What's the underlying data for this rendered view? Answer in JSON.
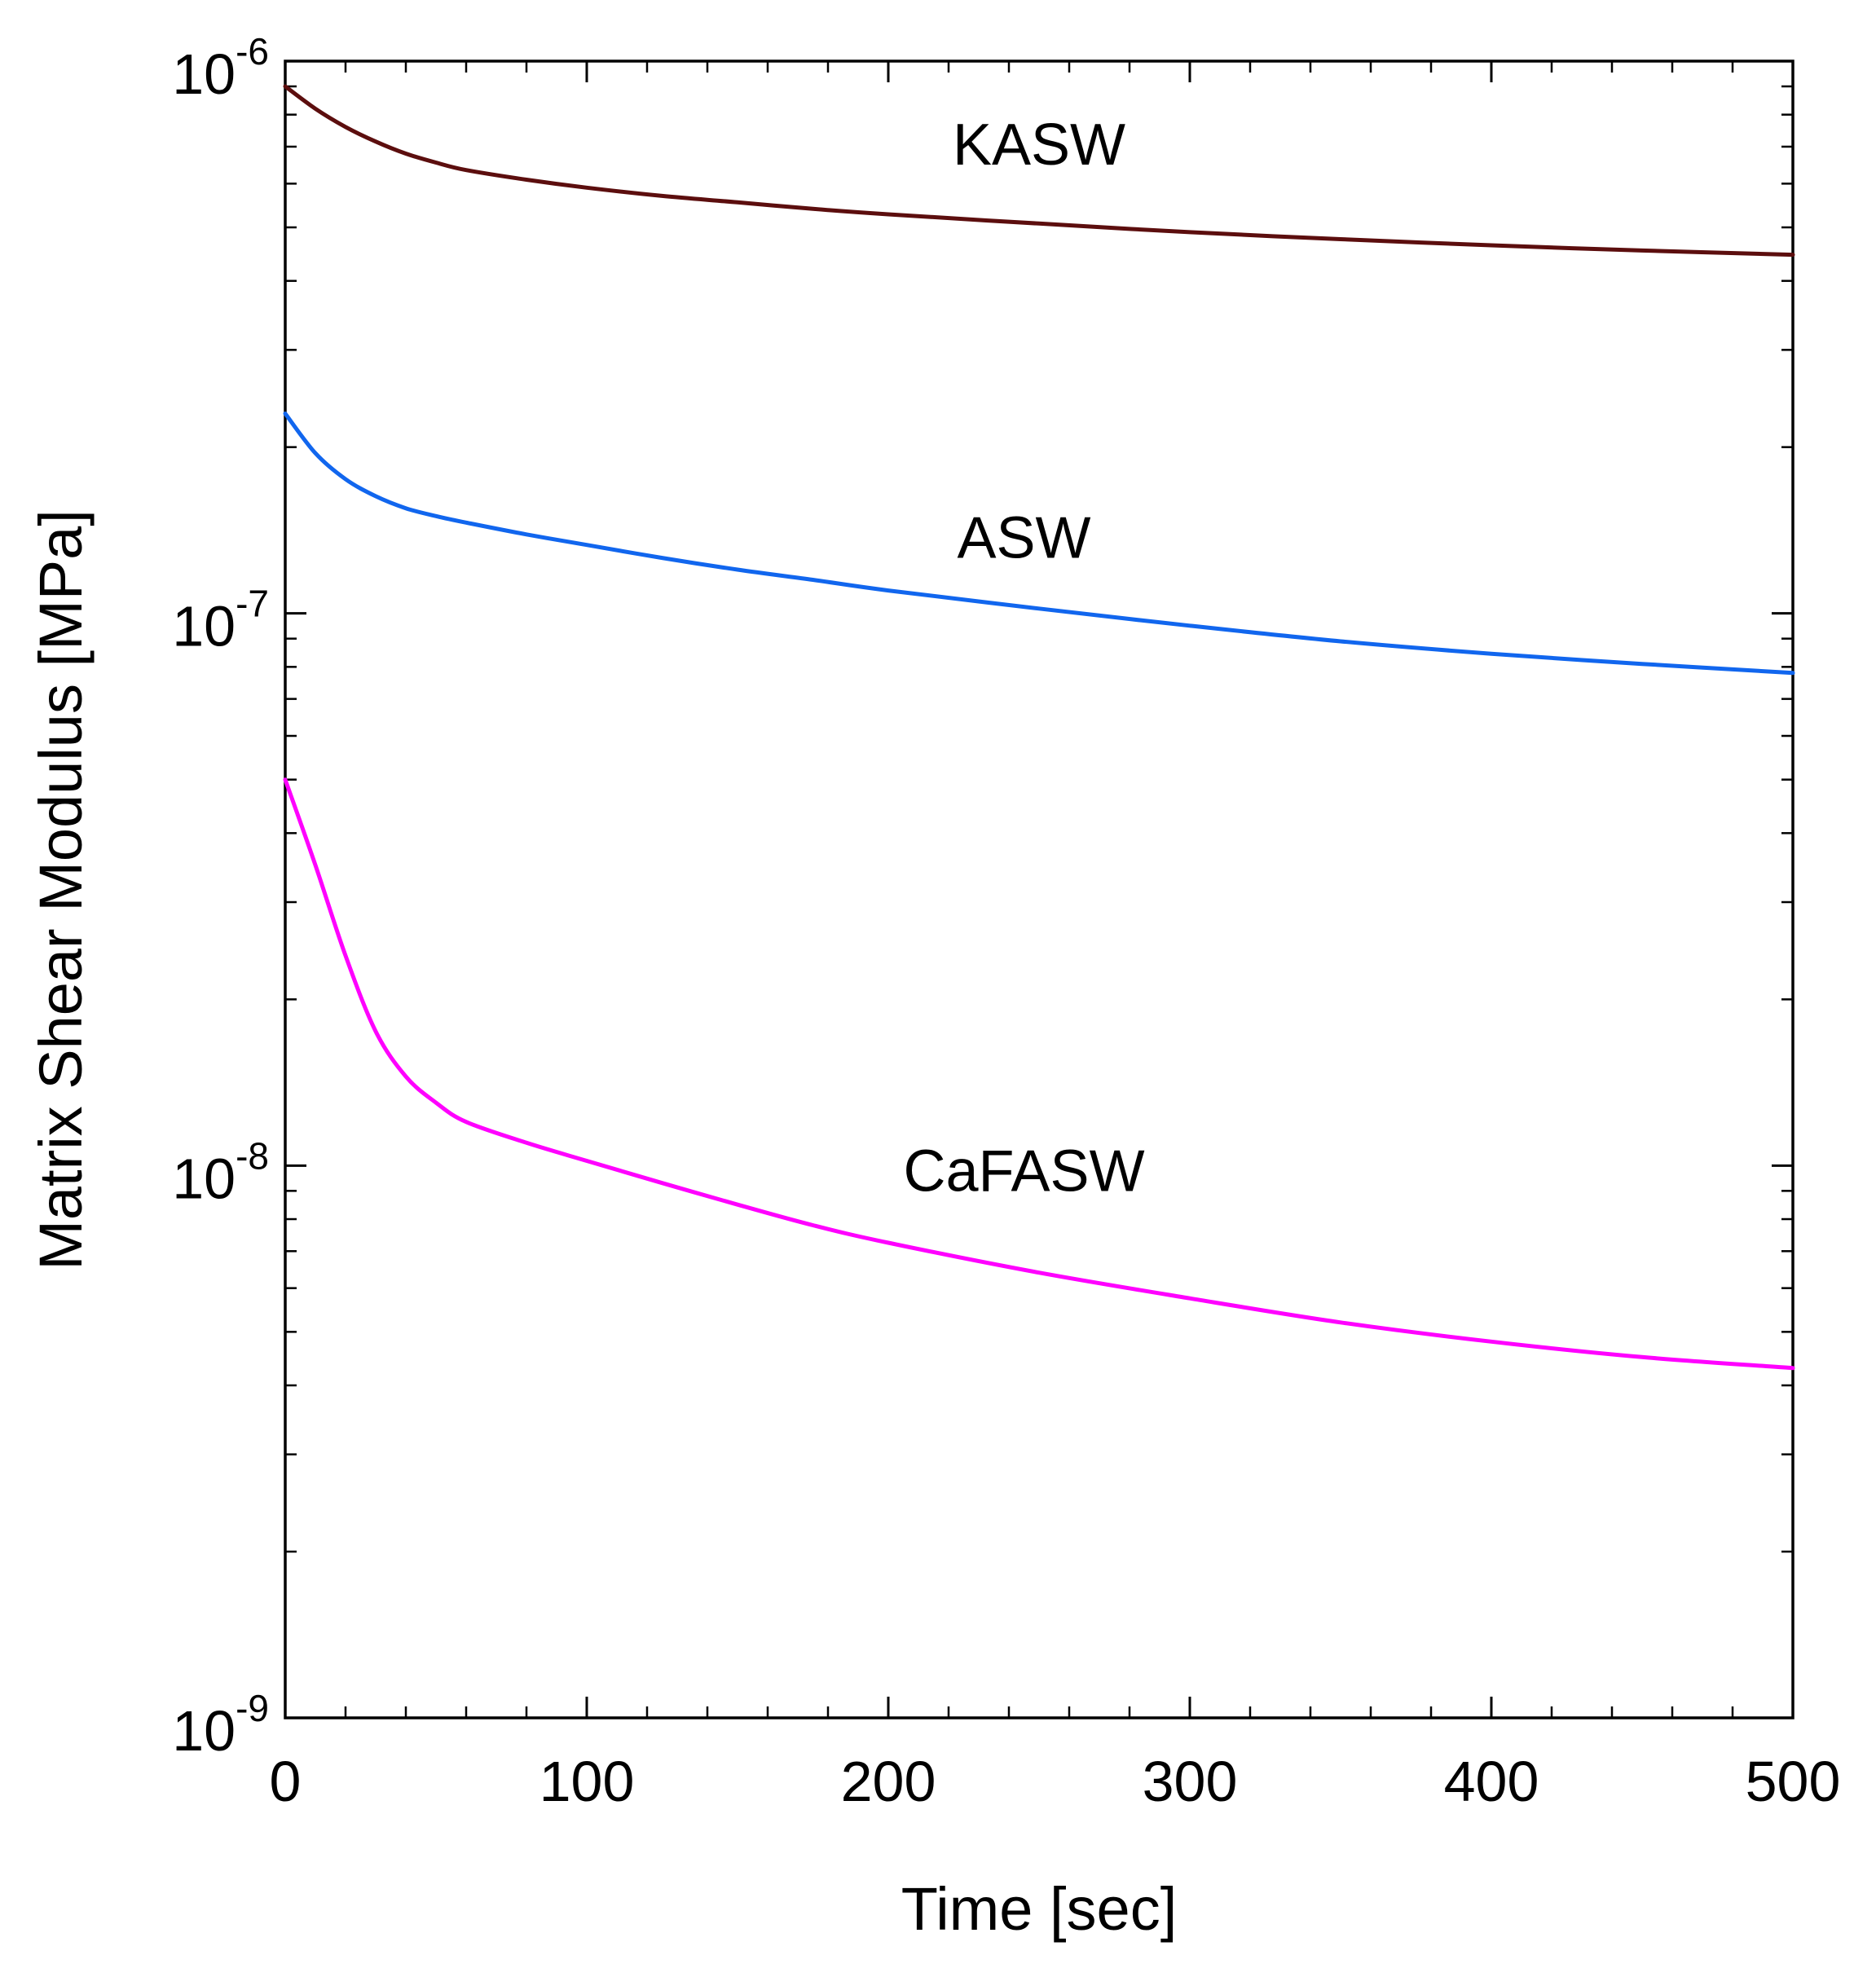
{
  "chart_data": {
    "type": "line",
    "title": "",
    "xlabel": "Time [sec]",
    "ylabel": "Matrix Shear Modulus [MPa]",
    "xlim": [
      0,
      500
    ],
    "ylim": [
      1e-09,
      1e-06
    ],
    "yscale": "log",
    "grid": false,
    "x_ticks": [
      {
        "value": 0,
        "label": "0"
      },
      {
        "value": 100,
        "label": "100"
      },
      {
        "value": 200,
        "label": "200"
      },
      {
        "value": 300,
        "label": "300"
      },
      {
        "value": 400,
        "label": "400"
      },
      {
        "value": 500,
        "label": "500"
      }
    ],
    "y_ticks": [
      {
        "value": 1e-09,
        "base": "10",
        "exponent": "-9"
      },
      {
        "value": 1e-08,
        "base": "10",
        "exponent": "-8"
      },
      {
        "value": 1e-07,
        "base": "10",
        "exponent": "-7"
      },
      {
        "value": 1e-06,
        "base": "10",
        "exponent": "-6"
      }
    ],
    "x": [
      0,
      10,
      20,
      30,
      40,
      50,
      60,
      80,
      100,
      125,
      150,
      175,
      200,
      250,
      300,
      350,
      400,
      450,
      500
    ],
    "series": [
      {
        "name": "KASW",
        "color": "#5c0e0e",
        "label_anchor": [
          250,
          6.5e-07
        ],
        "values": [
          9e-07,
          8.2e-07,
          7.6e-07,
          7.15e-07,
          6.8e-07,
          6.55e-07,
          6.35e-07,
          6.1e-07,
          5.9e-07,
          5.7e-07,
          5.55e-07,
          5.4e-07,
          5.28e-07,
          5.08e-07,
          4.9e-07,
          4.76e-07,
          4.64e-07,
          4.54e-07,
          4.46e-07
        ]
      },
      {
        "name": "ASW",
        "color": "#1166ee",
        "label_anchor": [
          245,
          1.26e-07
        ],
        "values": [
          2.3e-07,
          1.95e-07,
          1.75e-07,
          1.63e-07,
          1.55e-07,
          1.5e-07,
          1.46e-07,
          1.39e-07,
          1.33e-07,
          1.26e-07,
          1.2e-07,
          1.15e-07,
          1.1e-07,
          1.02e-07,
          9.5e-08,
          8.9e-08,
          8.45e-08,
          8.1e-08,
          7.8e-08
        ]
      },
      {
        "name": "CaFASW",
        "color": "#ff00ff",
        "label_anchor": [
          245,
          9e-09
        ],
        "values": [
          5e-08,
          3.5e-08,
          2.4e-08,
          1.75e-08,
          1.45e-08,
          1.3e-08,
          1.2e-08,
          1.1e-08,
          1.02e-08,
          9.3e-09,
          8.5e-09,
          7.8e-09,
          7.25e-09,
          6.4e-09,
          5.75e-09,
          5.2e-09,
          4.8e-09,
          4.5e-09,
          4.3e-09
        ]
      }
    ]
  }
}
